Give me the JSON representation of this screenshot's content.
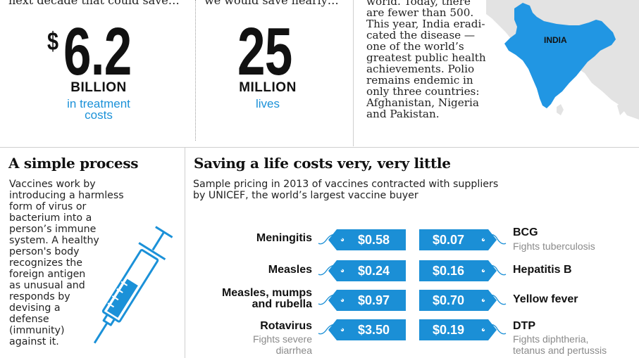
{
  "top": {
    "col1": {
      "cut_text": "next decade that could save…",
      "currency": "$",
      "value": "6.2",
      "unit": "BILLION",
      "sub1": "in treatment",
      "sub2": "costs"
    },
    "col2": {
      "cut_text": "we would save nearly…",
      "value": "25",
      "unit": "MILLION",
      "sub": "lives"
    },
    "india": {
      "lines": [
        "world. Today, there",
        "are fewer than 500.",
        "This year, India eradi-",
        "cated the disease —",
        "one of the world’s",
        "greatest public health",
        "achievements. Polio",
        "remains endemic in",
        "only three countries:",
        "Afghanistan, Nigeria",
        "and Pakistan."
      ],
      "map_label": "INDIA",
      "map_color": "#2196e3"
    }
  },
  "process": {
    "title": "A simple process",
    "lines": [
      "Vaccines work by",
      "introducing a harmless",
      "form of virus or",
      "bacterium into a",
      "person’s immune",
      "system. A healthy",
      "person's body",
      "recognizes the",
      "foreign antigen",
      "as unusual and",
      "responds by",
      "devising a",
      "defense",
      "(immunity)",
      "against it."
    ],
    "icon": "syringe-icon"
  },
  "pricing": {
    "title": "Saving a life costs very, very little",
    "subtitle1": "Sample pricing in 2013 of vaccines contracted with suppliers",
    "subtitle2": "by UNICEF, the world’s largest vaccine buyer",
    "tag_color": "#1b8fd6",
    "left": [
      {
        "name": "Meningitis",
        "price": "$0.58"
      },
      {
        "name": "Measles",
        "price": "$0.24"
      },
      {
        "name": "Measles, mumps",
        "name2": "and rubella",
        "price": "$0.97"
      },
      {
        "name": "Rotavirus",
        "desc1": "Fights severe",
        "desc2": "diarrhea",
        "price": "$3.50"
      }
    ],
    "right": [
      {
        "name": "BCG",
        "desc1": "Fights tuberculosis",
        "price": "$0.07"
      },
      {
        "name": "Hepatitis B",
        "price": "$0.16"
      },
      {
        "name": "Yellow fever",
        "price": "$0.70"
      },
      {
        "name": "DTP",
        "desc1": "Fights diphtheria,",
        "desc2": "tetanus and pertussis",
        "price": "$0.19"
      }
    ]
  }
}
